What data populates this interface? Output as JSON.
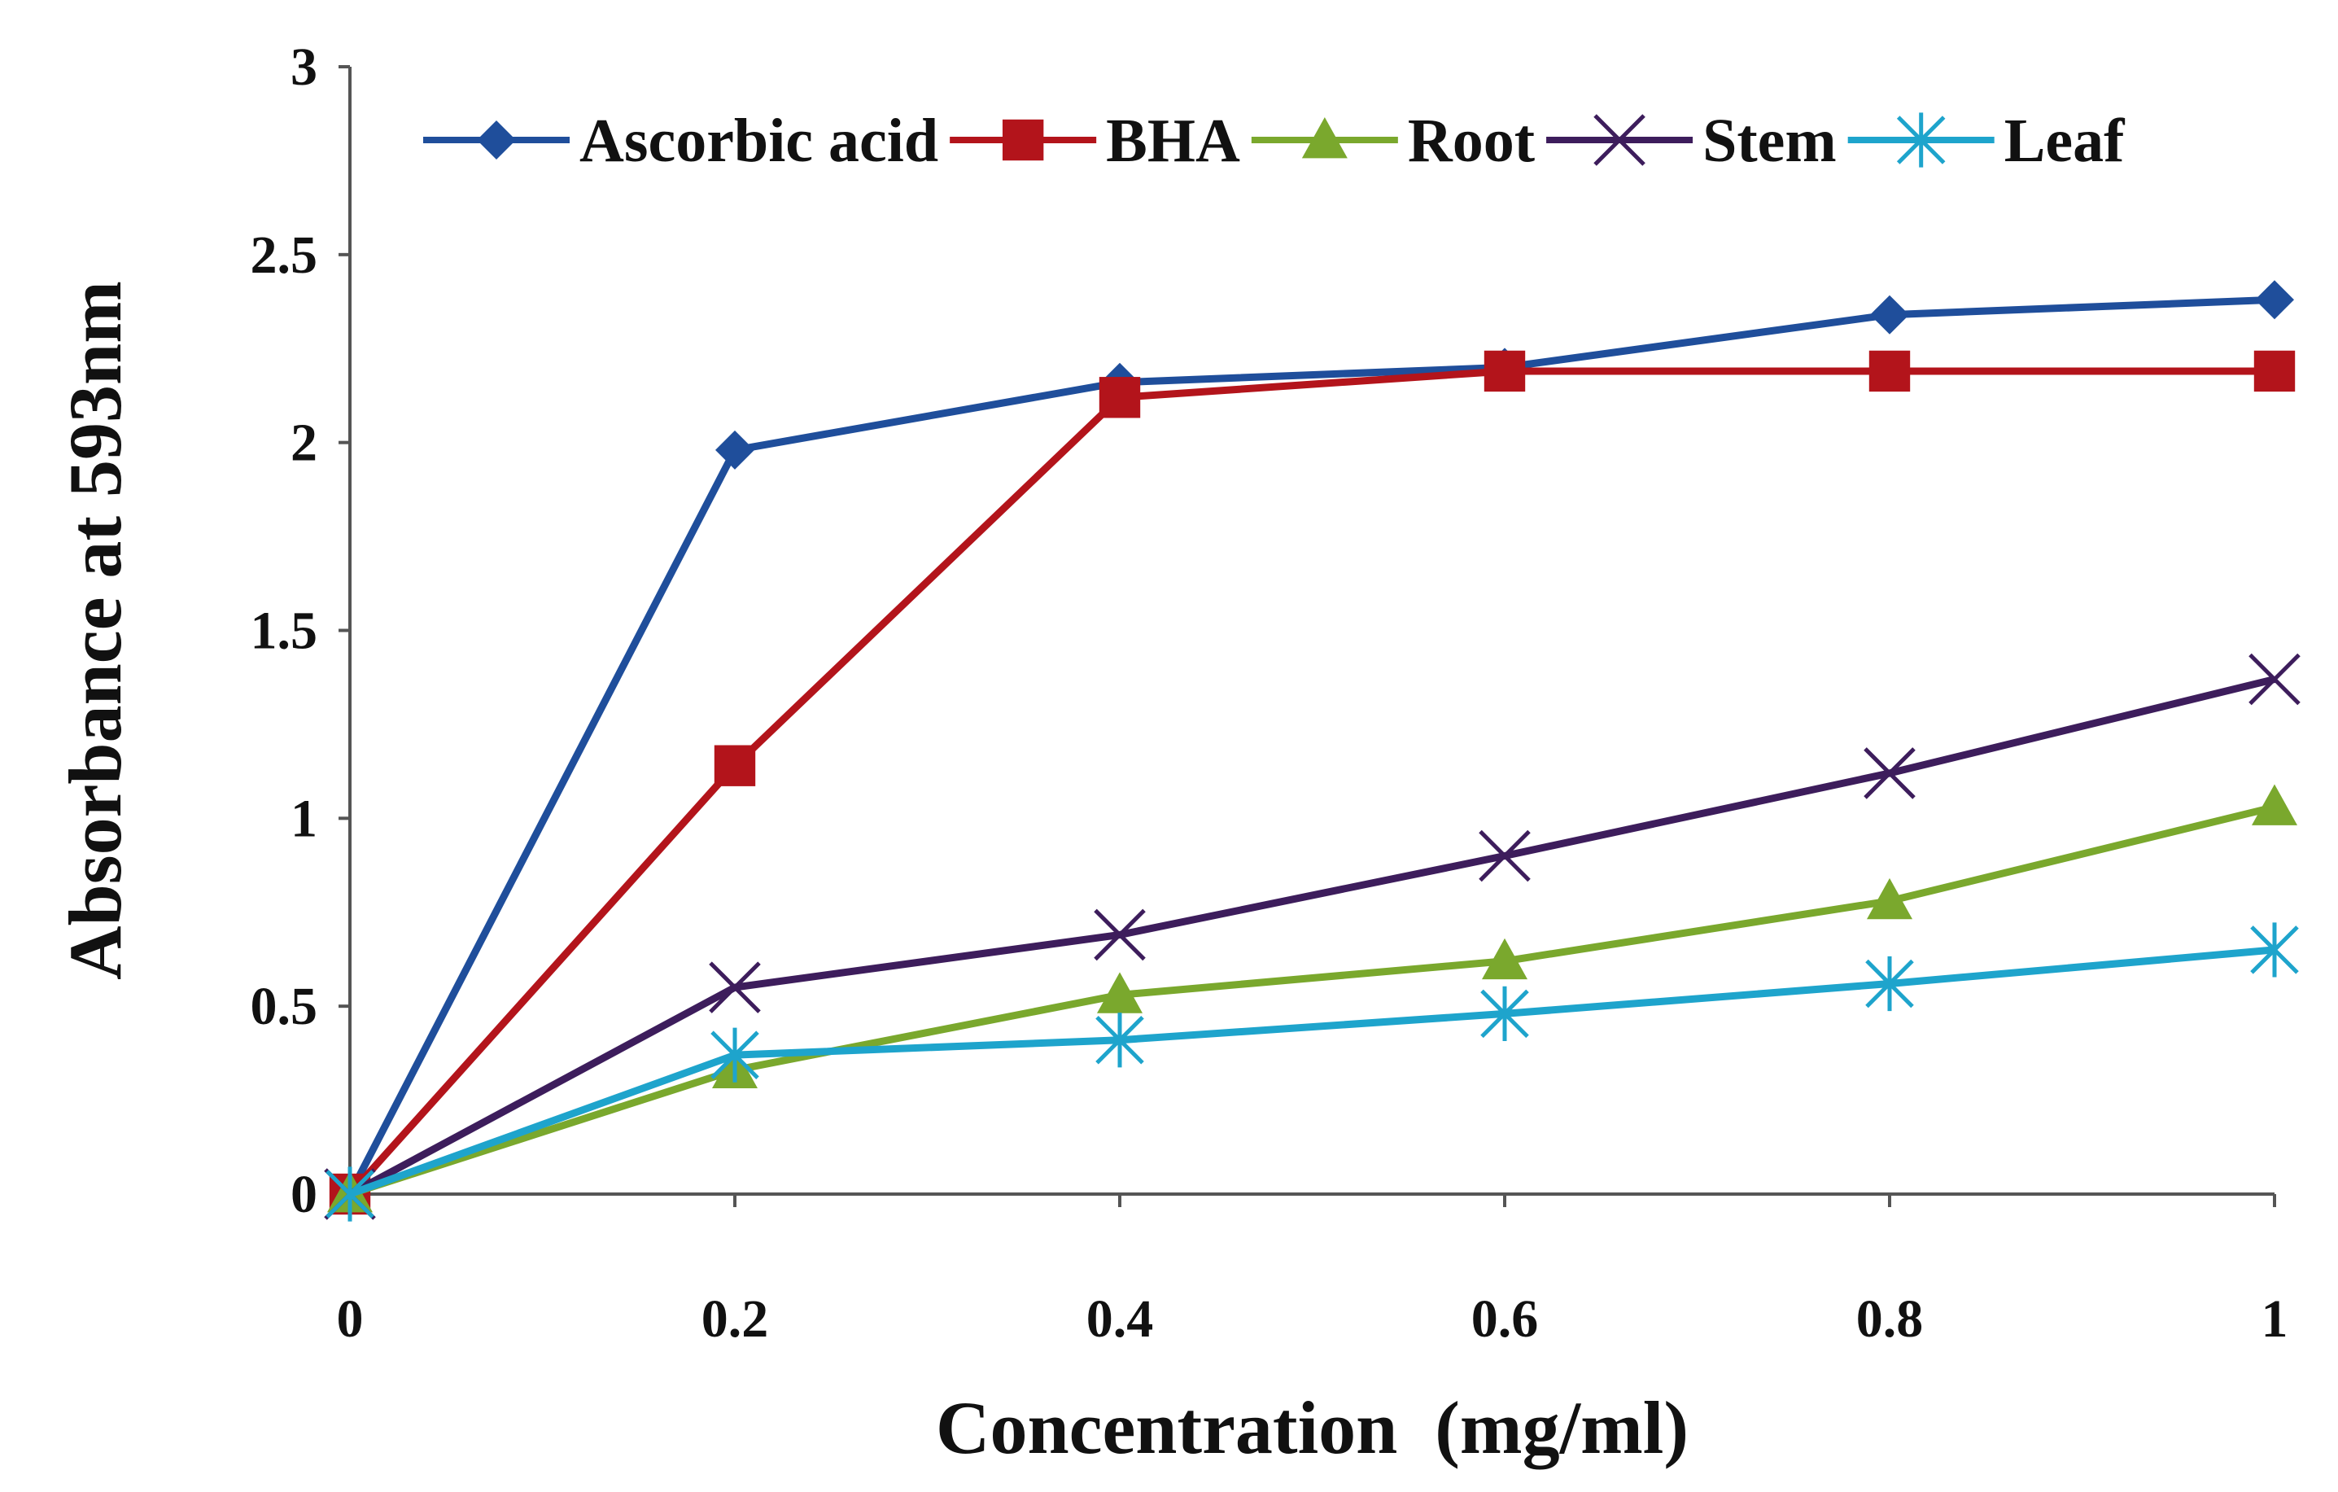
{
  "chart_data": {
    "type": "line",
    "title": "",
    "xlabel": "Concentration  (mg/ml)",
    "ylabel": "Absorbance at 593nm",
    "xlim": [
      0,
      1
    ],
    "ylim": [
      0,
      3
    ],
    "x": [
      0,
      0.2,
      0.4,
      0.6,
      0.8,
      1
    ],
    "x_ticks": [
      "0",
      "0.2",
      "0.4",
      "0.6",
      "0.8",
      "1"
    ],
    "y_ticks": [
      "0",
      "0.5",
      "1",
      "1.5",
      "2",
      "2.5",
      "3"
    ],
    "grid": false,
    "legend_position": "top",
    "series": [
      {
        "name": "Ascorbic acid",
        "color": "#1f4e9b",
        "marker": "diamond",
        "values": [
          0,
          1.98,
          2.16,
          2.2,
          2.34,
          2.38
        ]
      },
      {
        "name": "BHA",
        "color": "#b3141b",
        "marker": "square",
        "values": [
          0,
          1.14,
          2.12,
          2.19,
          2.19,
          2.19
        ]
      },
      {
        "name": "Root",
        "color": "#7aa82d",
        "marker": "triangle",
        "values": [
          0,
          0.33,
          0.53,
          0.62,
          0.78,
          1.03
        ]
      },
      {
        "name": "Stem",
        "color": "#3d1d5c",
        "marker": "x",
        "values": [
          0,
          0.55,
          0.69,
          0.9,
          1.12,
          1.37
        ]
      },
      {
        "name": "Leaf",
        "color": "#1ea4cc",
        "marker": "asterisk",
        "values": [
          0,
          0.37,
          0.41,
          0.48,
          0.56,
          0.65
        ]
      }
    ]
  }
}
